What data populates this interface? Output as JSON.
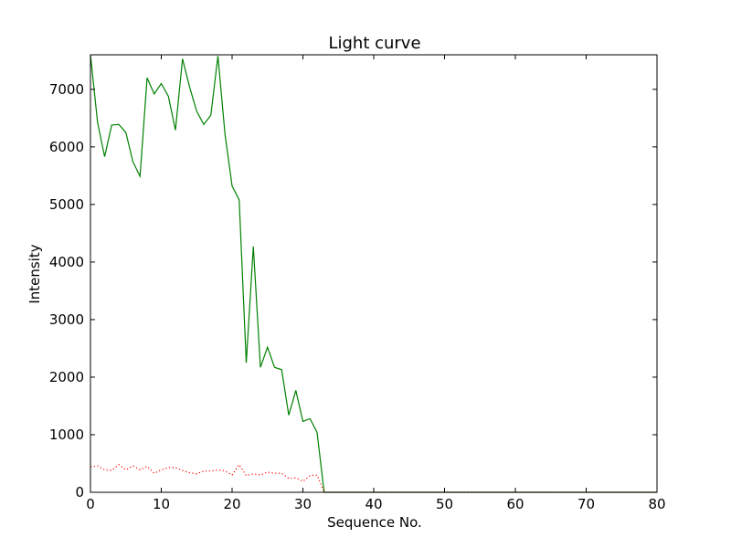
{
  "chart_data": {
    "type": "line",
    "title": "Light curve",
    "xlabel": "Sequence No.",
    "ylabel": "Intensity",
    "xlim": [
      0,
      80
    ],
    "ylim": [
      0,
      7600
    ],
    "xticks": [
      "0",
      "10",
      "20",
      "30",
      "40",
      "50",
      "60",
      "70",
      "80"
    ],
    "yticks": [
      "0",
      "1000",
      "2000",
      "3000",
      "4000",
      "5000",
      "6000",
      "7000"
    ],
    "grid": false,
    "series": [
      {
        "color": "#008000",
        "style": "solid",
        "x": [
          0,
          1,
          2,
          3,
          4,
          5,
          6,
          7,
          8,
          9,
          10,
          11,
          12,
          13,
          14,
          15,
          16,
          17,
          18,
          19,
          20,
          21,
          22,
          23,
          24,
          25,
          26,
          27,
          28,
          29,
          30,
          31,
          32,
          33,
          34,
          35,
          36,
          37,
          38,
          39,
          40,
          41,
          42,
          43,
          44,
          45,
          46,
          47,
          48,
          49,
          50,
          51,
          52,
          53,
          54,
          55,
          56,
          57,
          58,
          59,
          60,
          61,
          62,
          63,
          64,
          65,
          66,
          67,
          68,
          69,
          70,
          71,
          72,
          73,
          74,
          75,
          76,
          77,
          78,
          79,
          80
        ],
        "y": [
          7600,
          6430,
          5830,
          6380,
          6390,
          6250,
          5740,
          5490,
          7200,
          6920,
          7100,
          6880,
          6290,
          7530,
          7040,
          6620,
          6390,
          6550,
          7580,
          6220,
          5320,
          5080,
          2250,
          4270,
          2170,
          2520,
          2170,
          2130,
          1340,
          1770,
          1230,
          1280,
          1040,
          0,
          0,
          0,
          0,
          0,
          0,
          0,
          0,
          0,
          0,
          0,
          0,
          0,
          0,
          0,
          0,
          0,
          0,
          0,
          0,
          0,
          0,
          0,
          0,
          0,
          0,
          0,
          0,
          0,
          0,
          0,
          0,
          0,
          0,
          0,
          0,
          0,
          0,
          0,
          0,
          0,
          0,
          0,
          0,
          0,
          0,
          0,
          0
        ]
      },
      {
        "color": "#ff0000",
        "style": "dotted",
        "x": [
          0,
          1,
          2,
          3,
          4,
          5,
          6,
          7,
          8,
          9,
          10,
          11,
          12,
          13,
          14,
          15,
          16,
          17,
          18,
          19,
          20,
          21,
          22,
          23,
          24,
          25,
          26,
          27,
          28,
          29,
          30,
          31,
          32,
          33,
          34,
          35,
          36,
          37,
          38,
          39,
          40,
          41,
          42,
          43,
          44,
          45,
          46,
          47,
          48,
          49,
          50,
          51,
          52,
          53,
          54,
          55,
          56,
          57,
          58,
          59,
          60,
          61,
          62,
          63,
          64,
          65,
          66,
          67,
          68,
          69,
          70,
          71,
          72,
          73,
          74,
          75,
          76,
          77,
          78,
          79,
          80
        ],
        "y": [
          440,
          460,
          390,
          380,
          480,
          390,
          460,
          390,
          450,
          330,
          390,
          430,
          430,
          380,
          340,
          320,
          370,
          370,
          390,
          370,
          300,
          480,
          290,
          320,
          300,
          350,
          330,
          330,
          240,
          250,
          190,
          290,
          300,
          0,
          0,
          0,
          0,
          0,
          0,
          0,
          0,
          0,
          0,
          0,
          0,
          0,
          0,
          0,
          0,
          0,
          0,
          0,
          0,
          0,
          0,
          0,
          0,
          0,
          0,
          0,
          0,
          0,
          0,
          0,
          0,
          0,
          0,
          0,
          0,
          0,
          0,
          0,
          0,
          0,
          0,
          0,
          0,
          0,
          0,
          0,
          0
        ]
      }
    ]
  }
}
